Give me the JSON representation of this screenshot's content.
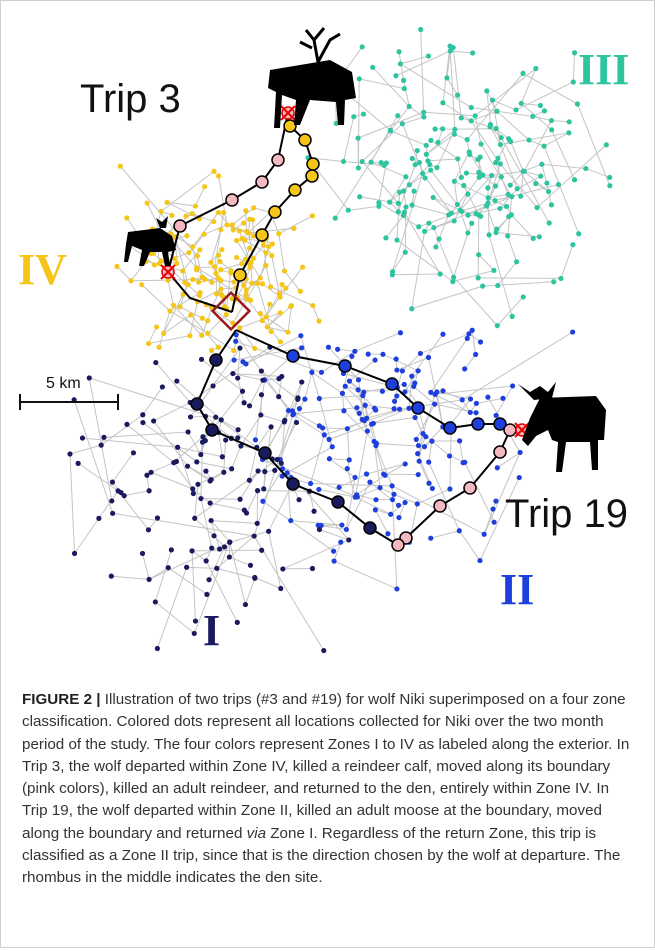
{
  "figure": {
    "labels": {
      "trip3": "Trip 3",
      "trip19": "Trip 19",
      "zone3": "III",
      "zone4": "IV",
      "zone2": "II",
      "zone1": "I",
      "scale": "5 km"
    },
    "caption": {
      "label": "FIGURE 2 |",
      "text_before": "Illustration of two trips (#3 and #19) for wolf Niki superimposed on a four zone classification. Colored dots represent all locations collected for Niki over the two month period of the study. The four colors represent Zones I to IV as labeled along the exterior. In Trip 3, the wolf departed within Zone IV, killed a reindeer calf, moved along its boundary (pink colors), killed an adult reindeer, and returned to the den, entirely within Zone IV. In Trip 19, the wolf departed within Zone II, killed an adult moose at the boundary, moved along the boundary and returned",
      "emphasis": "via",
      "text_after": "Zone I. Regardless of the return Zone, this trip is classified as a Zone II trip, since that is the direction chosen by the wolf at departure. The rhombus in the middle indicates the den site."
    }
  }
}
